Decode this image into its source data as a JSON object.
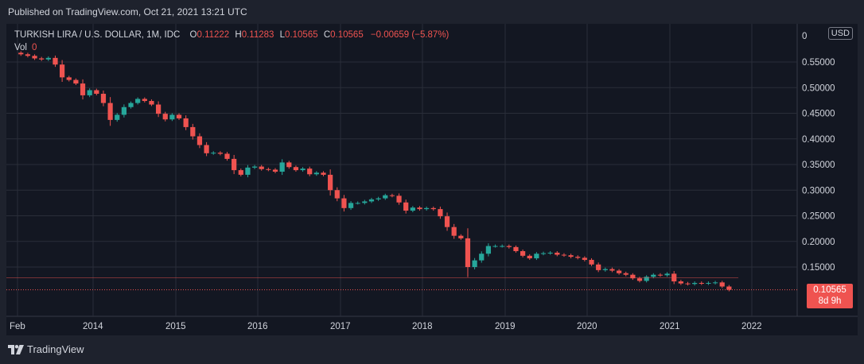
{
  "header": {
    "published": "Published on TradingView.com, Oct 21, 2021 13:21 UTC"
  },
  "legend": {
    "symbol": "TURKISH LIRA / U.S. DOLLAR, 1M, IDC",
    "o_label": "O",
    "o_value": "0.11222",
    "h_label": "H",
    "h_value": "0.11283",
    "l_label": "L",
    "l_value": "0.10565",
    "c_label": "C",
    "c_value": "0.10565",
    "change": "−0.00659 (−5.87%)",
    "vol_label": "Vol",
    "vol_value": "0"
  },
  "currency_badge": "USD",
  "price_tag": {
    "price": "0.10565",
    "countdown": "8d 9h"
  },
  "footer": {
    "brand": "TradingView"
  },
  "colors": {
    "up": "#26a69a",
    "down": "#ef5350",
    "background": "#131722",
    "grid": "#2a2e39",
    "text": "#d1d4dc"
  },
  "chart_data": {
    "type": "candlestick",
    "interval": "1M",
    "y_ticks": [
      "0",
      "0.55000",
      "0.50000",
      "0.45000",
      "0.40000",
      "0.35000",
      "0.30000",
      "0.25000",
      "0.20000",
      "0.15000"
    ],
    "x_ticks": [
      "Feb",
      "2014",
      "2015",
      "2016",
      "2017",
      "2018",
      "2019",
      "2020",
      "2021",
      "2022"
    ],
    "ylim": [
      0.09,
      0.57
    ],
    "grid": true,
    "start": "2013-02",
    "current_price": 0.10565,
    "closes": [
      0.565,
      0.562,
      0.557,
      0.555,
      0.558,
      0.545,
      0.52,
      0.515,
      0.508,
      0.485,
      0.495,
      0.488,
      0.47,
      0.437,
      0.447,
      0.462,
      0.47,
      0.478,
      0.474,
      0.467,
      0.449,
      0.438,
      0.447,
      0.44,
      0.423,
      0.405,
      0.388,
      0.372,
      0.373,
      0.371,
      0.361,
      0.339,
      0.33,
      0.344,
      0.346,
      0.341,
      0.34,
      0.336,
      0.354,
      0.345,
      0.339,
      0.342,
      0.331,
      0.334,
      0.33,
      0.3,
      0.284,
      0.265,
      0.275,
      0.275,
      0.278,
      0.282,
      0.284,
      0.29,
      0.289,
      0.276,
      0.26,
      0.266,
      0.263,
      0.265,
      0.263,
      0.249,
      0.228,
      0.211,
      0.206,
      0.15,
      0.163,
      0.176,
      0.191,
      0.191,
      0.191,
      0.189,
      0.181,
      0.172,
      0.167,
      0.176,
      0.177,
      0.178,
      0.174,
      0.173,
      0.17,
      0.168,
      0.164,
      0.155,
      0.144,
      0.146,
      0.143,
      0.138,
      0.135,
      0.128,
      0.123,
      0.131,
      0.135,
      0.134,
      0.137,
      0.122,
      0.118,
      0.117,
      0.119,
      0.118,
      0.119,
      0.12,
      0.112,
      0.10565
    ]
  }
}
